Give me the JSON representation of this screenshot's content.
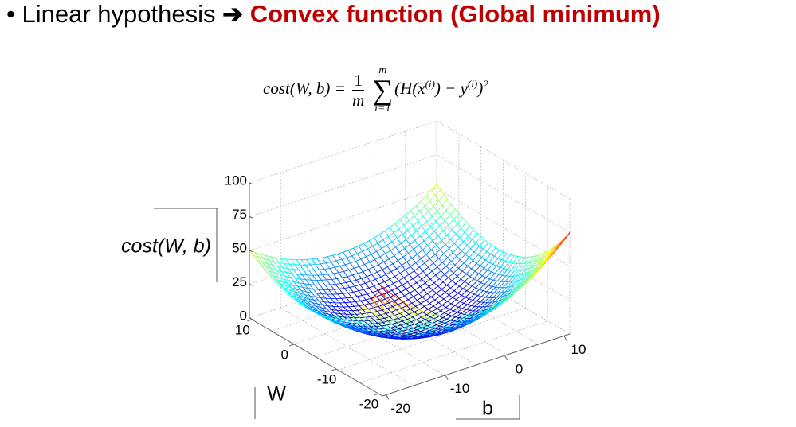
{
  "title": {
    "bullet": "•",
    "lead": "Linear hypothesis",
    "arrow": "➔",
    "emphasis": "Convex function (Global minimum)"
  },
  "formula": {
    "lhs": "cost(W, b) =",
    "numerator": "1",
    "denominator": "m",
    "sum_upper": "m",
    "sum_symbol": "∑",
    "sum_lower": "i=1",
    "body_parts": [
      "(H(x",
      "(i)",
      ") − y",
      "(i)",
      ")",
      "2"
    ]
  },
  "plot": {
    "z_label": "cost(W, b)",
    "w_label": "W",
    "b_label": "b",
    "z_ticks": [
      "100",
      "75",
      "50",
      "25",
      "0"
    ],
    "w_ticks": [
      "10",
      "0",
      "-10",
      "-20"
    ],
    "b_ticks": [
      "-20",
      "-10",
      "0",
      "10"
    ]
  }
}
